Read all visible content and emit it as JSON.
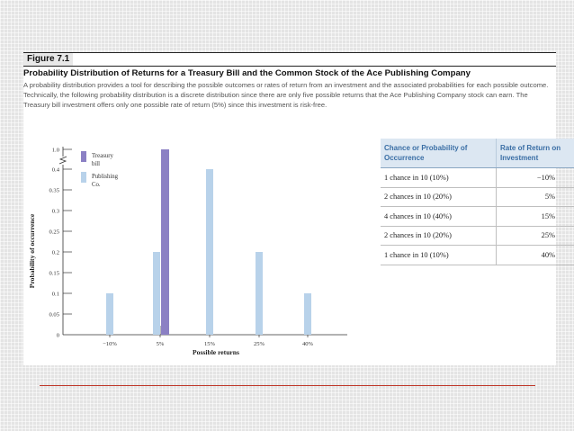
{
  "figure": {
    "label": "Figure 7.1",
    "title": "Probability Distribution of Returns for a Treasury Bill and the Common Stock of the Ace Publishing Company",
    "caption": "A probability distribution provides a tool for describing the possible outcomes or rates of return from an investment and the associated probabilities for each possible outcome. Technically, the following probability distribution is a discrete distribution since there are only five possible returns that the Ace Publishing Company stock can earn. The Treasury bill investment offers only one possible rate of return (5%) since this investment is risk-free."
  },
  "colors": {
    "treasury": "#8b80c4",
    "publishing": "#b8d2ea",
    "header_bg": "#dce7f2",
    "header_text": "#3a6ea5",
    "rule": "#c0392b"
  },
  "chart_data": {
    "type": "bar",
    "categories": [
      "-10%",
      "5%",
      "15%",
      "25%",
      "40%"
    ],
    "series": [
      {
        "name": "Treasury bill",
        "values": [
          0,
          1.0,
          0,
          0,
          0
        ]
      },
      {
        "name": "Publishing Co.",
        "values": [
          0.1,
          0.2,
          0.4,
          0.2,
          0.1
        ]
      }
    ],
    "xlabel": "Possible returns",
    "ylabel": "Probability of occurrence",
    "yticks": [
      "0",
      "0.05",
      "0.1",
      "0.15",
      "0.2",
      "0.25",
      "0.3",
      "0.35",
      "0.4",
      "1.0"
    ],
    "ylim": [
      0,
      0.4
    ],
    "axis_break": "between 0.4 and 1.0",
    "legend_position": "top-left",
    "grid": false
  },
  "table": {
    "headers": [
      "Chance or Probability of Occurrence",
      "Rate of Return on Investment"
    ],
    "rows": [
      [
        "1 chance in 10 (10%)",
        "−10%"
      ],
      [
        "2 chances in 10 (20%)",
        "5%"
      ],
      [
        "4 chances in 10 (40%)",
        "15%"
      ],
      [
        "2 chances in 10 (20%)",
        "25%"
      ],
      [
        "1 chance in 10 (10%)",
        "40%"
      ]
    ]
  }
}
